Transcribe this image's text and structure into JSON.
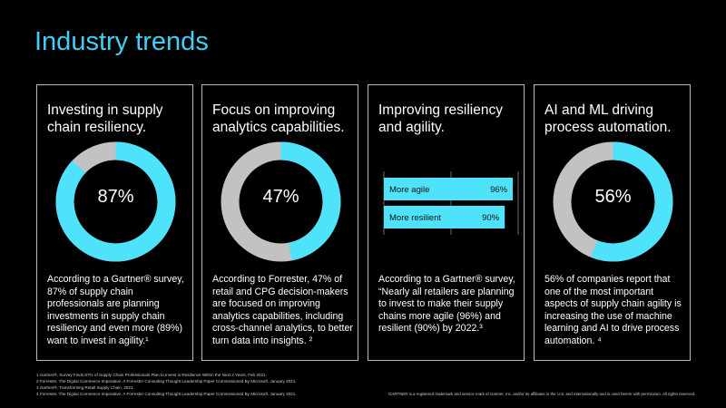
{
  "title": "Industry trends",
  "colors": {
    "accent": "#4fe3fb",
    "rest": "#c2c2c2",
    "title": "#3fd0f4"
  },
  "cards": [
    {
      "heading": "Investing in supply chain resiliency.",
      "percent": 87,
      "percent_label": "87%",
      "body": "According to a Gartner® survey, 87% of supply chain professionals are planning investments in supply chain resiliency and even more (89%) want to invest in agility.¹"
    },
    {
      "heading": "Focus on improving analytics capabilities.",
      "percent": 47,
      "percent_label": "47%",
      "body": "According to Forrester, 47% of retail and CPG decision-makers are focused on improving analytics capabilities, including cross-channel analytics, to better turn data into insights. ²"
    },
    {
      "heading": "Improving resiliency and agility.",
      "body": "According to a Gartner® survey, “Nearly all retailers are planning to invest to make their supply chains more agile (96%) and resilient (90%) by 2022.³"
    },
    {
      "heading": "AI and ML driving process automation.",
      "percent": 56,
      "percent_label": "56%",
      "body": "56% of companies report that one of the most important aspects of supply chain agility is increasing the use of machine learning and AI to drive process automation. ⁴"
    }
  ],
  "chart_data": {
    "type": "bar",
    "orientation": "horizontal",
    "categories": [
      "More agile",
      "More resilient"
    ],
    "values": [
      96,
      90
    ],
    "labels": [
      "96%",
      "90%"
    ],
    "xlim": [
      0,
      100
    ]
  },
  "footnotes": [
    "1 Gartner®, Survey Finds 87% of Supply Chain Professionals Plan to Invest in Resilience Within the Next 2 Years, Feb 2021.",
    "2 Forrester, The Digital Commerce Imperative. A Forrester Consulting Thought Leadership Paper Commissioned By Microsoft. January 2021.",
    "3 Gartner®, Transforming Retail Supply Chain, 2021.",
    "4 Forrester, The Digital Commerce Imperative. A Forrester Consulting Thought Leadership Paper Commissioned By Microsoft. January 2021."
  ],
  "legal": "GARTNER is a registered trademark and service mark of Gartner, Inc. and/or its affiliates in the U.S. and internationally and is used herein with permission. All rights reserved."
}
